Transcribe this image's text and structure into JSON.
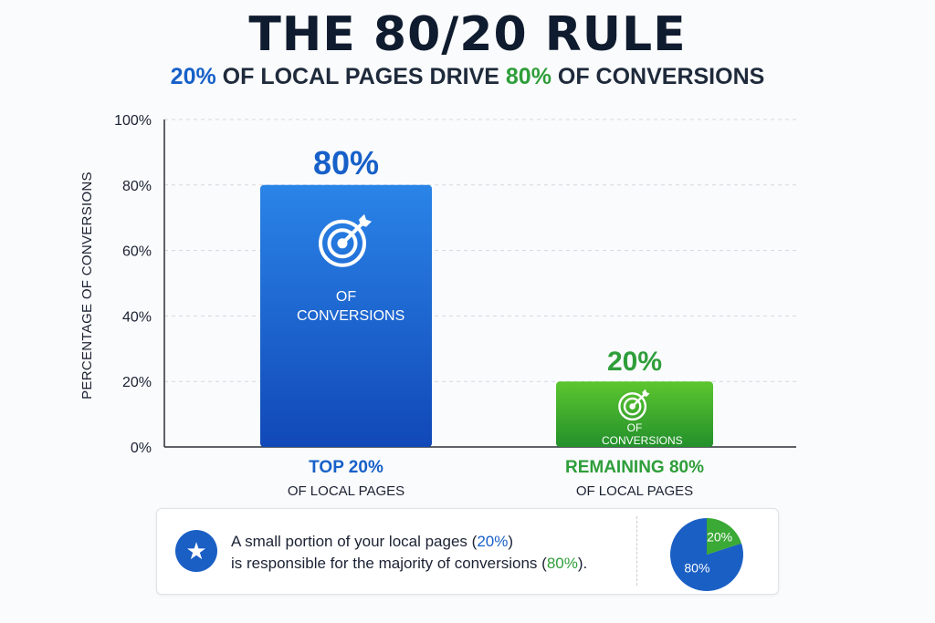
{
  "title": "THE 80/20 RULE",
  "subtitle": {
    "p1": "20%",
    "p2": " OF LOCAL PAGES DRIVE ",
    "p3": "80%",
    "p4": " OF CONVERSIONS"
  },
  "colors": {
    "blue": "#1760c9",
    "green": "#2e9e3a"
  },
  "chart_data": {
    "type": "bar",
    "categories": [
      "TOP 20%",
      "REMAINING 80%"
    ],
    "category_sublabels": [
      "OF LOCAL PAGES",
      "OF LOCAL PAGES"
    ],
    "values": [
      80,
      20
    ],
    "value_labels": [
      "80%",
      "20%"
    ],
    "bar_text": [
      "OF CONVERSIONS",
      "OF CONVERSIONS"
    ],
    "bar_icon": "target-arrow-icon",
    "ylabel": "PERCENTAGE OF CONVERSIONS",
    "ylim": [
      0,
      100
    ],
    "yticks": [
      "0%",
      "20%",
      "40%",
      "60%",
      "80%",
      "100%"
    ],
    "grid": true
  },
  "callout": {
    "icon": "star-icon",
    "l1a": "A small portion of your local pages (",
    "l1b": "20%",
    "l1c": ")",
    "l2a": "is responsible for the majority of conversions (",
    "l2b": "80%",
    "l2c": ")."
  },
  "pie": {
    "values": [
      80,
      20
    ],
    "labels": [
      "80%",
      "20%"
    ]
  }
}
